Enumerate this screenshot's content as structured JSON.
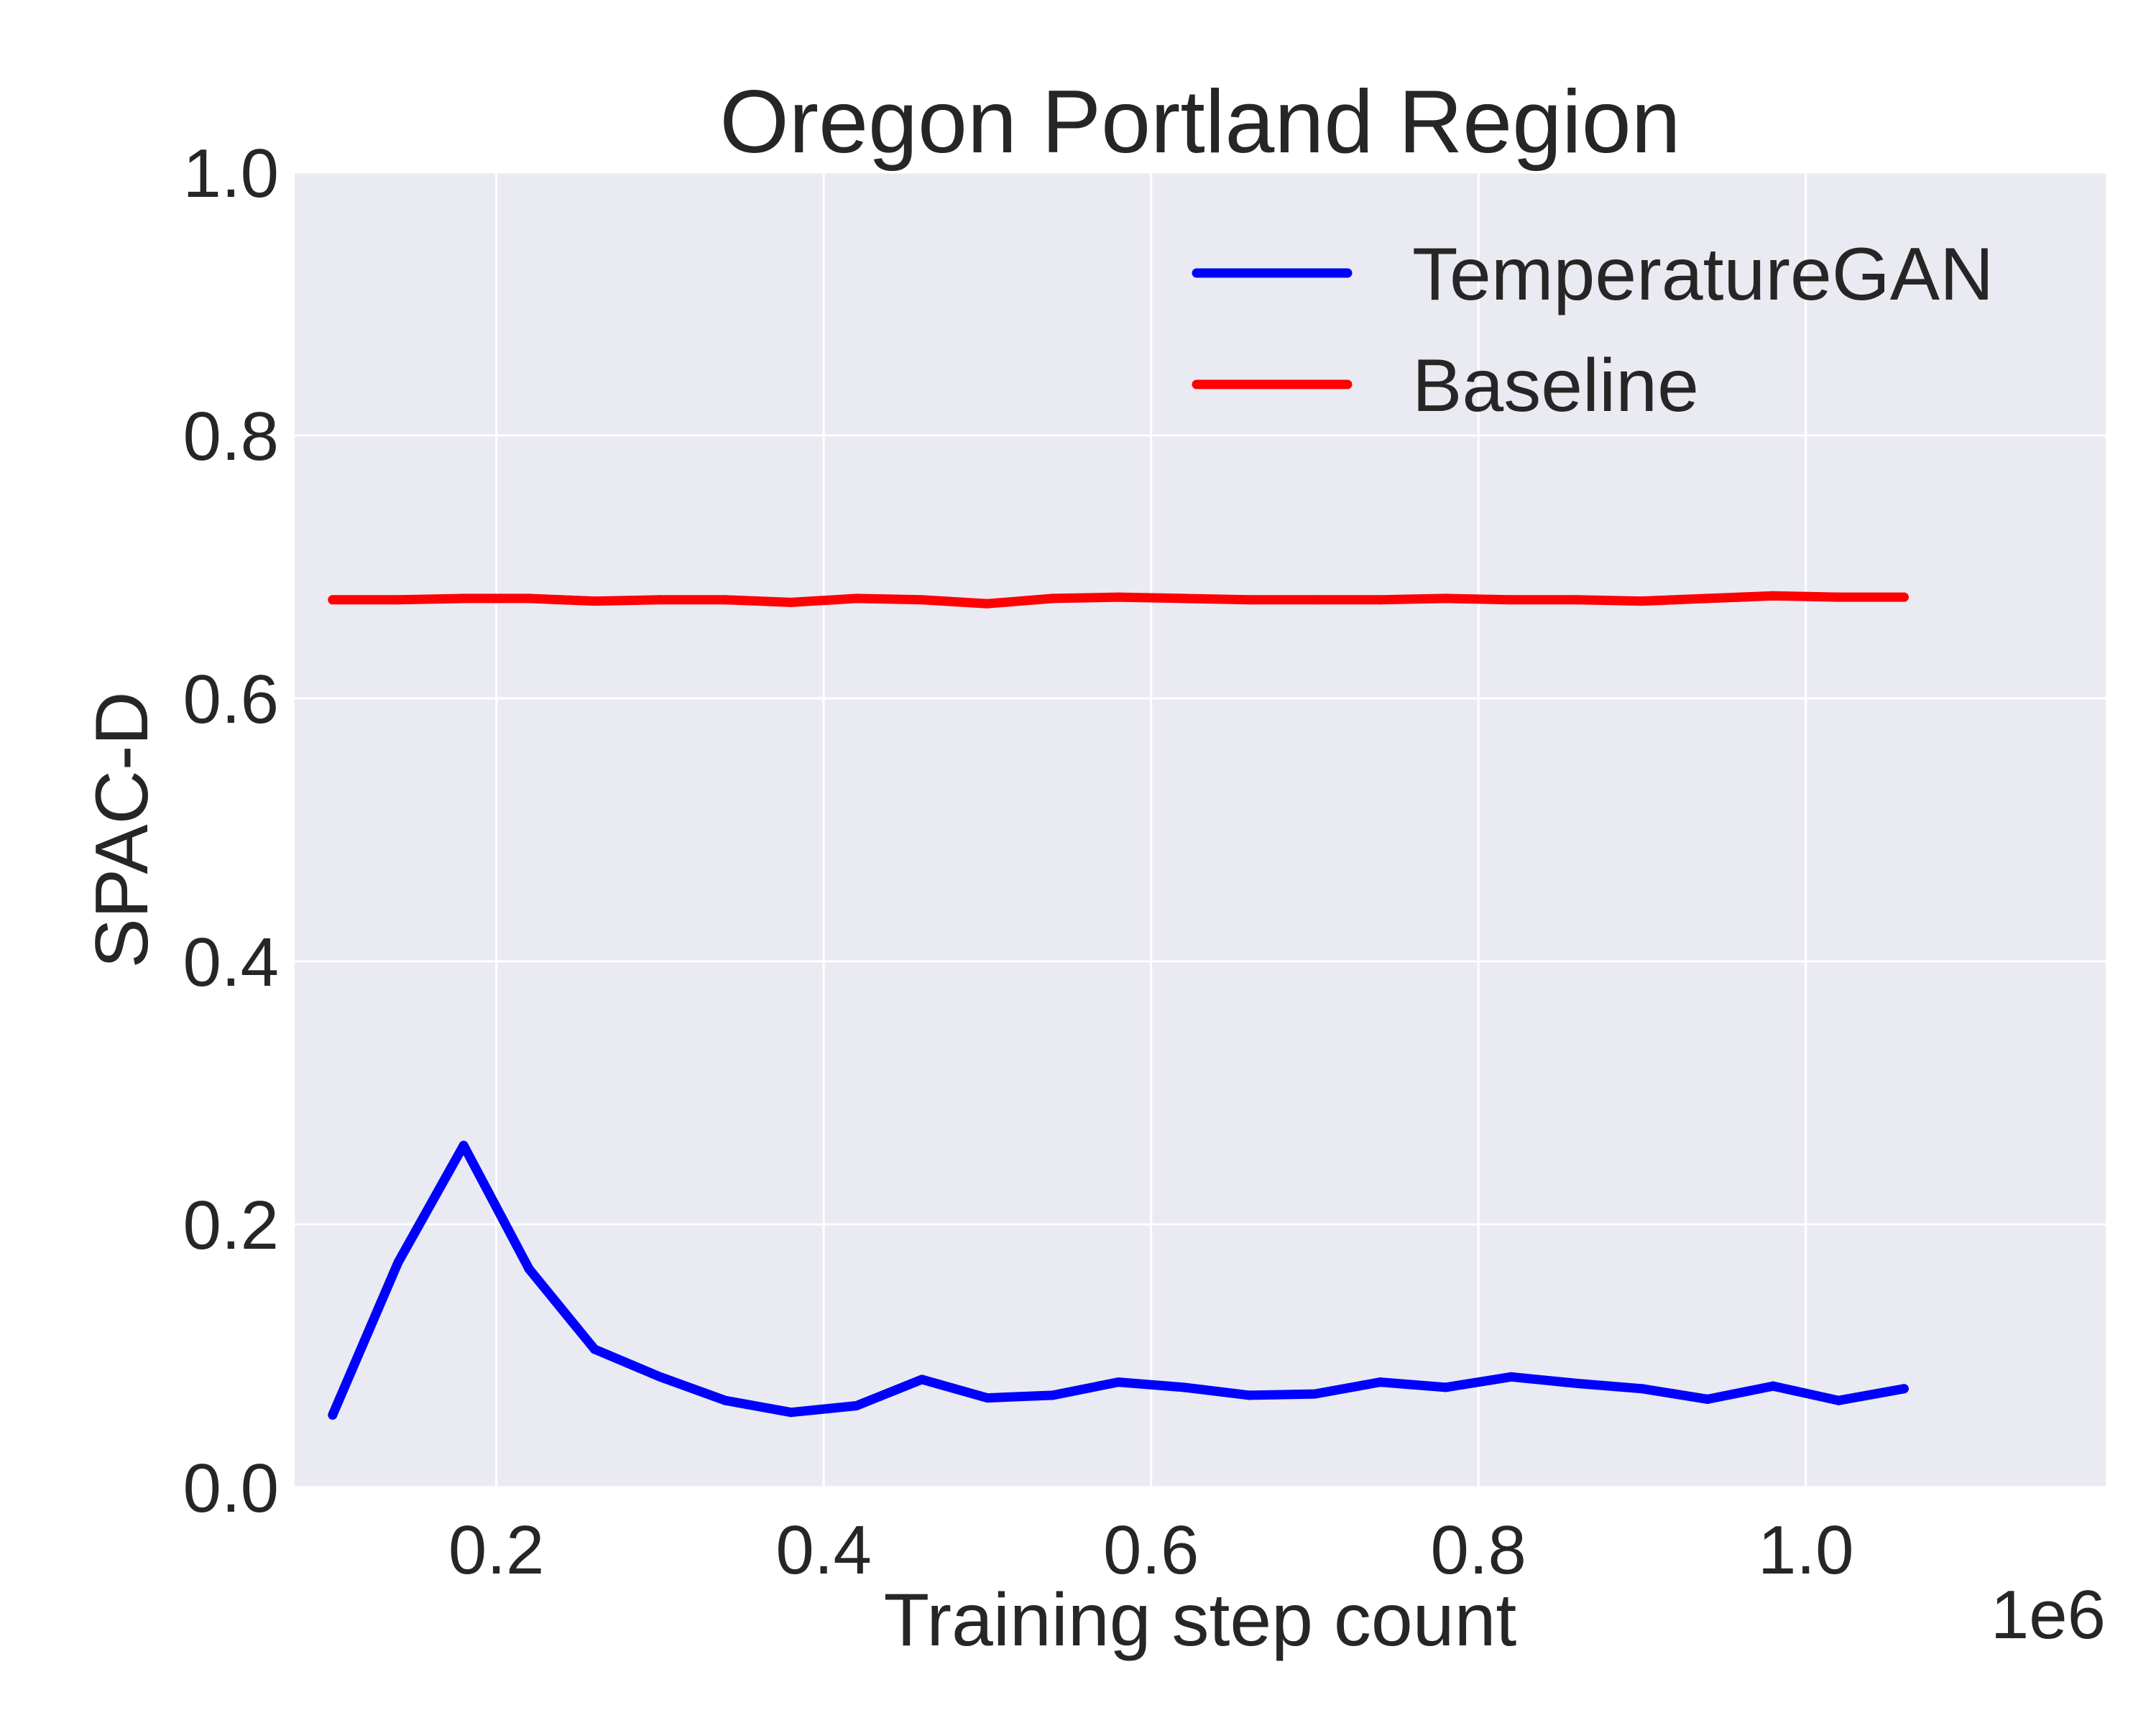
{
  "chart_data": {
    "type": "line",
    "title": "Oregon Portland Region",
    "xlabel": "Training step count",
    "ylabel": "SPAC-D",
    "x_offset_label": "1e6",
    "xlim": [
      0.0768,
      1.1832
    ],
    "ylim": [
      0.0,
      1.0
    ],
    "x_ticks": [
      0.2,
      0.4,
      0.6,
      0.8,
      1.0
    ],
    "x_tick_labels": [
      "0.2",
      "0.4",
      "0.6",
      "0.8",
      "1.0"
    ],
    "y_ticks": [
      0.0,
      0.2,
      0.4,
      0.6,
      0.8,
      1.0
    ],
    "y_tick_labels": [
      "0.0",
      "0.2",
      "0.4",
      "0.6",
      "0.8",
      "1.0"
    ],
    "grid": true,
    "legend_position": "top-right",
    "x": [
      0.1,
      0.14,
      0.18,
      0.22,
      0.26,
      0.3,
      0.34,
      0.38,
      0.42,
      0.46,
      0.5,
      0.54,
      0.58,
      0.62,
      0.66,
      0.7,
      0.74,
      0.78,
      0.82,
      0.86,
      0.9,
      0.94,
      0.98,
      1.02,
      1.06
    ],
    "series": [
      {
        "name": "TemperatureGAN",
        "color": "#0000ff",
        "values": [
          0.055,
          0.171,
          0.26,
          0.166,
          0.105,
          0.084,
          0.066,
          0.057,
          0.062,
          0.082,
          0.068,
          0.07,
          0.08,
          0.076,
          0.07,
          0.071,
          0.08,
          0.076,
          0.084,
          0.079,
          0.075,
          0.067,
          0.077,
          0.066,
          0.075
        ]
      },
      {
        "name": "Baseline",
        "color": "#ff0000",
        "values": [
          0.675,
          0.675,
          0.676,
          0.676,
          0.674,
          0.675,
          0.675,
          0.673,
          0.676,
          0.675,
          0.672,
          0.676,
          0.677,
          0.676,
          0.675,
          0.675,
          0.675,
          0.676,
          0.675,
          0.675,
          0.674,
          0.676,
          0.678,
          0.677,
          0.677
        ]
      }
    ]
  }
}
